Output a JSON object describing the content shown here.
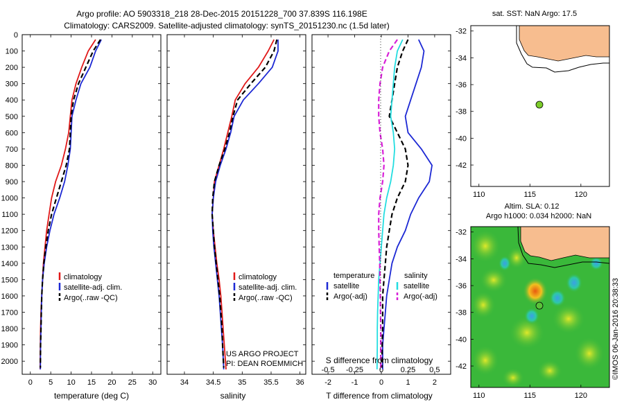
{
  "header": {
    "line1": "Argo profile: AO 5903318_218 28-Dec-2015 20151228_700 37.839S 116.198E",
    "line2": "Climatology: CARS2009. Satellite-adjusted climatology: synTS_20151230.nc (1.5d later)"
  },
  "colors": {
    "climatology": "#e01818",
    "satellite": "#1c28d4",
    "argo": "#000000",
    "cyan": "#22dde0",
    "magenta": "#d820d8",
    "land": "#f7bd8f",
    "ocean_map": "#3ab83a"
  },
  "depth_ticks": [
    "0",
    "100",
    "200",
    "300",
    "400",
    "500",
    "600",
    "700",
    "800",
    "900",
    "1000",
    "1100",
    "1200",
    "1300",
    "1400",
    "1500",
    "1600",
    "1700",
    "1800",
    "1900",
    "2000"
  ],
  "chart_data": [
    {
      "type": "line",
      "xlabel": "temperature (deg C)",
      "xticks": [
        "0",
        "5",
        "10",
        "15",
        "20",
        "25",
        "30"
      ],
      "xlim": [
        -2,
        32
      ],
      "ylim": [
        2080,
        0
      ],
      "legend": [
        "climatology",
        "satellite-adj. clim.",
        "Argo(..raw -QC)"
      ],
      "series": [
        {
          "name": "climatology",
          "color": "red",
          "x": [
            16.0,
            14.2,
            12.6,
            11.2,
            10.2,
            9.8,
            9.4,
            8.6,
            7.6,
            6.2,
            5.2,
            4.6,
            4.0,
            3.6,
            3.2,
            3.0,
            2.8,
            2.6,
            2.5,
            2.45,
            2.4
          ],
          "y": [
            30,
            100,
            200,
            300,
            400,
            500,
            600,
            700,
            800,
            900,
            1000,
            1100,
            1200,
            1300,
            1400,
            1500,
            1600,
            1700,
            1800,
            1900,
            2050
          ]
        },
        {
          "name": "satellite-adj. clim.",
          "color": "blue",
          "x": [
            17.4,
            16.0,
            14.6,
            12.4,
            11.2,
            10.2,
            10.0,
            9.8,
            9.2,
            8.4,
            7.2,
            5.8,
            4.8,
            4.0,
            3.4,
            3.0,
            2.8,
            2.7,
            2.6,
            2.5,
            2.45
          ],
          "y": [
            30,
            100,
            200,
            300,
            400,
            500,
            600,
            700,
            800,
            900,
            1000,
            1100,
            1200,
            1300,
            1400,
            1500,
            1600,
            1700,
            1800,
            1900,
            2050
          ]
        },
        {
          "name": "Argo(..raw -QC)",
          "color": "black",
          "x": [
            17.2,
            15.4,
            13.6,
            11.8,
            10.6,
            10.0,
            9.8,
            9.6,
            8.8,
            7.6,
            6.4,
            5.2,
            4.4,
            3.8,
            3.3,
            3.0,
            2.8,
            2.7,
            2.6,
            2.5,
            2.45
          ],
          "y": [
            30,
            100,
            200,
            300,
            400,
            500,
            600,
            700,
            800,
            900,
            1000,
            1100,
            1200,
            1300,
            1400,
            1500,
            1600,
            1700,
            1800,
            1900,
            2040
          ]
        }
      ]
    },
    {
      "type": "line",
      "xlabel": "salinity",
      "xticks": [
        "34",
        "34.5",
        "35",
        "35.5",
        "36"
      ],
      "xlim": [
        33.7,
        36.1
      ],
      "ylim": [
        2080,
        0
      ],
      "legend": [
        "climatology",
        "satellite-adj. clim.",
        "Argo(..raw -QC)"
      ],
      "annotation": [
        "US ARGO PROJECT",
        "PI: DEAN ROEMMICH"
      ],
      "series": [
        {
          "name": "climatology",
          "color": "red",
          "x": [
            35.55,
            35.45,
            35.28,
            35.05,
            34.88,
            34.82,
            34.75,
            34.68,
            34.6,
            34.52,
            34.5,
            34.48,
            34.5,
            34.53,
            34.56,
            34.6,
            34.63,
            34.65,
            34.67,
            34.69,
            34.72
          ],
          "y": [
            30,
            100,
            200,
            300,
            400,
            500,
            600,
            700,
            800,
            900,
            1000,
            1100,
            1200,
            1300,
            1400,
            1500,
            1600,
            1700,
            1800,
            1900,
            2050
          ]
        },
        {
          "name": "satellite-adj. clim.",
          "color": "blue",
          "x": [
            35.62,
            35.62,
            35.52,
            35.28,
            35.02,
            34.86,
            34.8,
            34.72,
            34.62,
            34.54,
            34.5,
            34.48,
            34.49,
            34.51,
            34.54,
            34.57,
            34.6,
            34.62,
            34.64,
            34.66,
            34.68
          ],
          "y": [
            30,
            100,
            200,
            300,
            400,
            500,
            600,
            700,
            800,
            900,
            1000,
            1100,
            1200,
            1300,
            1400,
            1500,
            1600,
            1700,
            1800,
            1900,
            2050
          ]
        },
        {
          "name": "Argo(..raw -QC)",
          "color": "black",
          "x": [
            35.6,
            35.55,
            35.4,
            35.15,
            34.92,
            34.84,
            34.78,
            34.7,
            34.6,
            34.52,
            34.49,
            34.48,
            34.5,
            34.52,
            34.55,
            34.58,
            34.61,
            34.63,
            34.65,
            34.66,
            34.68
          ],
          "y": [
            30,
            100,
            200,
            300,
            400,
            500,
            600,
            700,
            800,
            900,
            1000,
            1100,
            1200,
            1300,
            1400,
            1500,
            1600,
            1700,
            1800,
            1900,
            2040
          ]
        }
      ]
    },
    {
      "type": "line",
      "xlabel": "T difference from climatology",
      "xlabel2": "S difference from climatology",
      "xticks": [
        "-2",
        "-1",
        "0",
        "1",
        "2"
      ],
      "xticks2": [
        "-0.5",
        "-0.25",
        "0",
        "0.25",
        "0.5"
      ],
      "xlim": [
        -2.6,
        2.6
      ],
      "ylim": [
        2080,
        0
      ],
      "legend_headers": [
        "temperature",
        "salinity"
      ],
      "legend": [
        "satellite",
        "Argo(-adj)",
        "satellite",
        "Argo(-adj)"
      ],
      "series": [
        {
          "name": "satellite",
          "color": "blue",
          "x": [
            1.4,
            1.6,
            1.5,
            1.3,
            1.1,
            0.9,
            1.0,
            1.5,
            1.9,
            1.8,
            1.4,
            1.1,
            0.9,
            0.6,
            0.4,
            0.3,
            0.2,
            0.15,
            0.1,
            0.05,
            0.05
          ],
          "y": [
            30,
            100,
            200,
            300,
            400,
            500,
            600,
            700,
            800,
            900,
            1000,
            1100,
            1200,
            1300,
            1400,
            1500,
            1600,
            1700,
            1800,
            1900,
            2050
          ]
        },
        {
          "name": "Argo(-adj)",
          "color": "black",
          "x": [
            1.0,
            0.8,
            0.6,
            0.5,
            0.4,
            0.3,
            0.6,
            0.9,
            1.0,
            0.9,
            0.6,
            0.4,
            0.3,
            0.2,
            0.15,
            0.1,
            0.05,
            0.05,
            0.05,
            0.03,
            0.02
          ],
          "y": [
            30,
            100,
            200,
            300,
            400,
            500,
            600,
            700,
            800,
            900,
            1000,
            1100,
            1200,
            1300,
            1400,
            1500,
            1600,
            1700,
            1800,
            1900,
            2040
          ]
        },
        {
          "name": "satellite",
          "color": "cyan",
          "x": [
            0.8,
            0.6,
            0.5,
            0.45,
            0.4,
            0.35,
            0.45,
            0.5,
            0.45,
            0.35,
            0.2,
            0.1,
            0.05,
            0.0,
            -0.05,
            -0.1,
            -0.12,
            -0.14,
            -0.15,
            -0.15,
            -0.16
          ],
          "y": [
            30,
            100,
            200,
            300,
            400,
            500,
            600,
            700,
            800,
            900,
            1000,
            1100,
            1200,
            1300,
            1400,
            1500,
            1600,
            1700,
            1800,
            1900,
            2050
          ]
        },
        {
          "name": "Argo(-adj)",
          "color": "magenta",
          "x": [
            0.6,
            0.3,
            0.05,
            -0.05,
            -0.1,
            -0.1,
            -0.05,
            0.05,
            0.1,
            0.05,
            -0.05,
            -0.1,
            -0.1,
            -0.08,
            -0.06,
            -0.05,
            -0.04,
            -0.03,
            -0.02,
            -0.02,
            -0.02
          ],
          "y": [
            30,
            100,
            200,
            300,
            400,
            500,
            600,
            700,
            800,
            900,
            1000,
            1100,
            1200,
            1300,
            1400,
            1500,
            1600,
            1700,
            1800,
            1900,
            2040
          ]
        }
      ]
    }
  ],
  "map_top": {
    "title": "sat. SST: NaN Argo: 17.5",
    "xticks": [
      "110",
      "115",
      "120"
    ],
    "yticks": [
      "-32",
      "-34",
      "-36",
      "-38",
      "-40",
      "-42"
    ],
    "float_lon": 116.198,
    "float_lat": -37.839
  },
  "map_bottom": {
    "title1": "Altim. SLA: 0.12",
    "title2": "Argo h1000: 0.034 h2000: NaN",
    "xticks": [
      "110",
      "115",
      "120"
    ],
    "yticks": [
      "-32",
      "-34",
      "-36",
      "-38",
      "-40",
      "-42"
    ],
    "float_lon": 116.198,
    "float_lat": -37.839
  },
  "side_label": "©IMOS 06-Jan-2016 20:38:33"
}
